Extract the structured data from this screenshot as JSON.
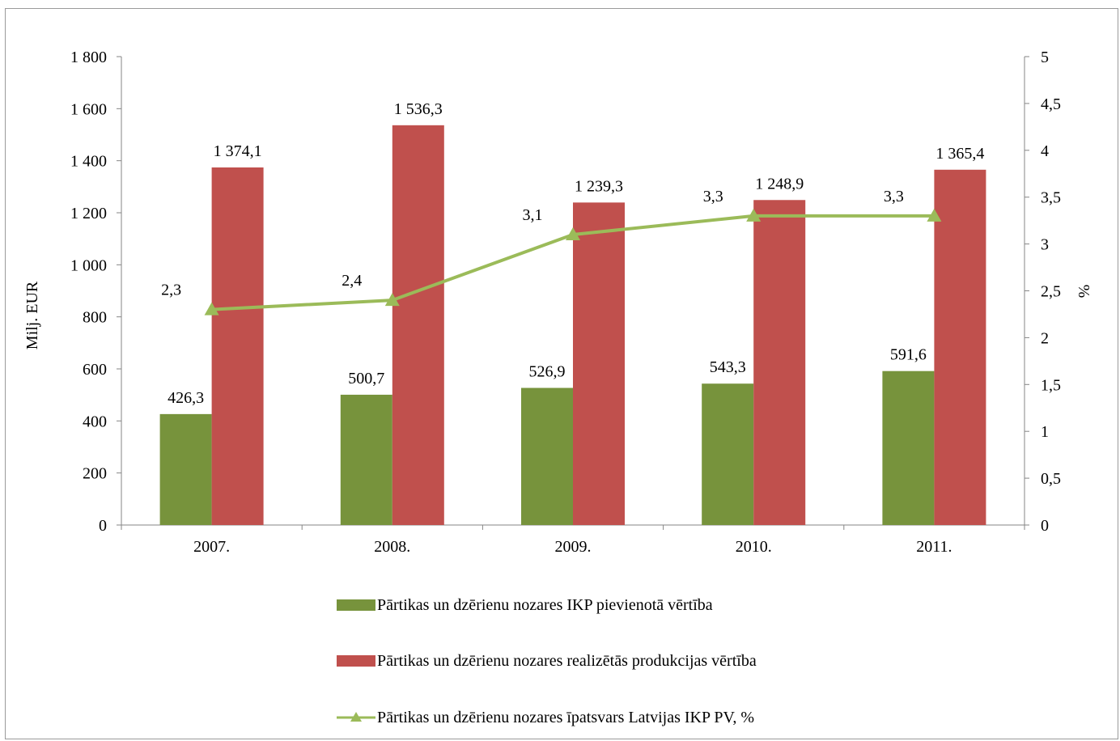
{
  "chart_data": {
    "type": "bar",
    "categories": [
      "2007.",
      "2008.",
      "2009.",
      "2010.",
      "2011."
    ],
    "series": [
      {
        "name": "Pārtikas un dzērienu nozares IKP pievienotā vērtība",
        "type": "bar",
        "axis": "left",
        "color": "#77933c",
        "values": [
          426.3,
          500.7,
          526.9,
          543.3,
          591.6
        ],
        "labels": [
          "426,3",
          "500,7",
          "526,9",
          "543,3",
          "591,6"
        ]
      },
      {
        "name": "Pārtikas un dzērienu nozares realizētās produkcijas vērtība",
        "type": "bar",
        "axis": "left",
        "color": "#c0504d",
        "values": [
          1374.1,
          1536.3,
          1239.3,
          1248.9,
          1365.4
        ],
        "labels": [
          "1 374,1",
          "1 536,3",
          "1 239,3",
          "1 248,9",
          "1 365,4"
        ]
      },
      {
        "name": "Pārtikas un dzērienu nozares īpatsvars Latvijas IKP PV, %",
        "type": "line",
        "axis": "right",
        "marker": "triangle",
        "color": "#9bbb59",
        "values": [
          2.3,
          2.4,
          3.1,
          3.3,
          3.3
        ],
        "labels": [
          "2,3",
          "2,4",
          "3,1",
          "3,3",
          "3,3"
        ]
      }
    ],
    "ylabel": "Milj. EUR",
    "ylim": [
      0,
      1800
    ],
    "yticks": [
      "0",
      "200",
      "400",
      "600",
      "800",
      "1 000",
      "1 200",
      "1 400",
      "1 600",
      "1 800"
    ],
    "y2label": "%",
    "y2lim": [
      0,
      5
    ],
    "y2ticks": [
      "0",
      "0,5",
      "1",
      "1,5",
      "2",
      "2,5",
      "3",
      "3,5",
      "4",
      "4,5",
      "5"
    ],
    "grid": false,
    "legend": "bottom"
  }
}
